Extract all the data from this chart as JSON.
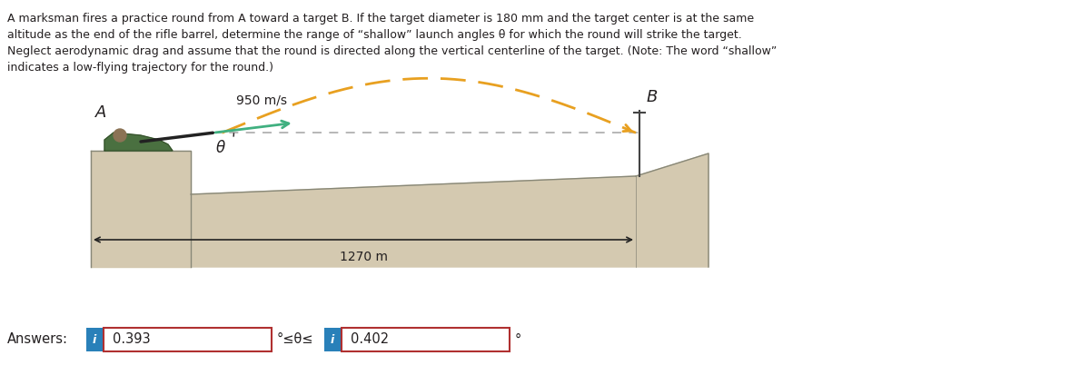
{
  "problem_text_lines": [
    "A marksman fires a practice round from A toward a target B. If the target diameter is 180 mm and the target center is at the same",
    "altitude as the end of the rifle barrel, determine the range of “shallow” launch angles θ for which the round will strike the target.",
    "Neglect aerodynamic drag and assume that the round is directed along the vertical centerline of the target. (Note: The word “shallow”",
    "indicates a low-flying trajectory for the round.)"
  ],
  "speed_label": "950 m/s",
  "distance_label": "1270 m",
  "label_A": "A",
  "label_B": "B",
  "label_theta": "θ",
  "answer_label": "Answers:",
  "answer_val1": "0.393",
  "answer_val2": "0.402",
  "answer_middle": "°≤θ≤",
  "answer_unit": "°",
  "bg_color": "#ffffff",
  "text_color": "#231f20",
  "ground_fill": "#d4c9b0",
  "ground_edge": "#888878",
  "dashed_color": "#aaaaaa",
  "traj_color": "#e8a020",
  "rifle_arrow_color": "#40b080",
  "answer_box_color": "#b03030",
  "answer_box_fill": "#ffffff",
  "answer_icon_color": "#2980b9",
  "dim_arrow_color": "#222222",
  "shooter_body": "#4a7040",
  "shooter_dark": "#2a4020"
}
